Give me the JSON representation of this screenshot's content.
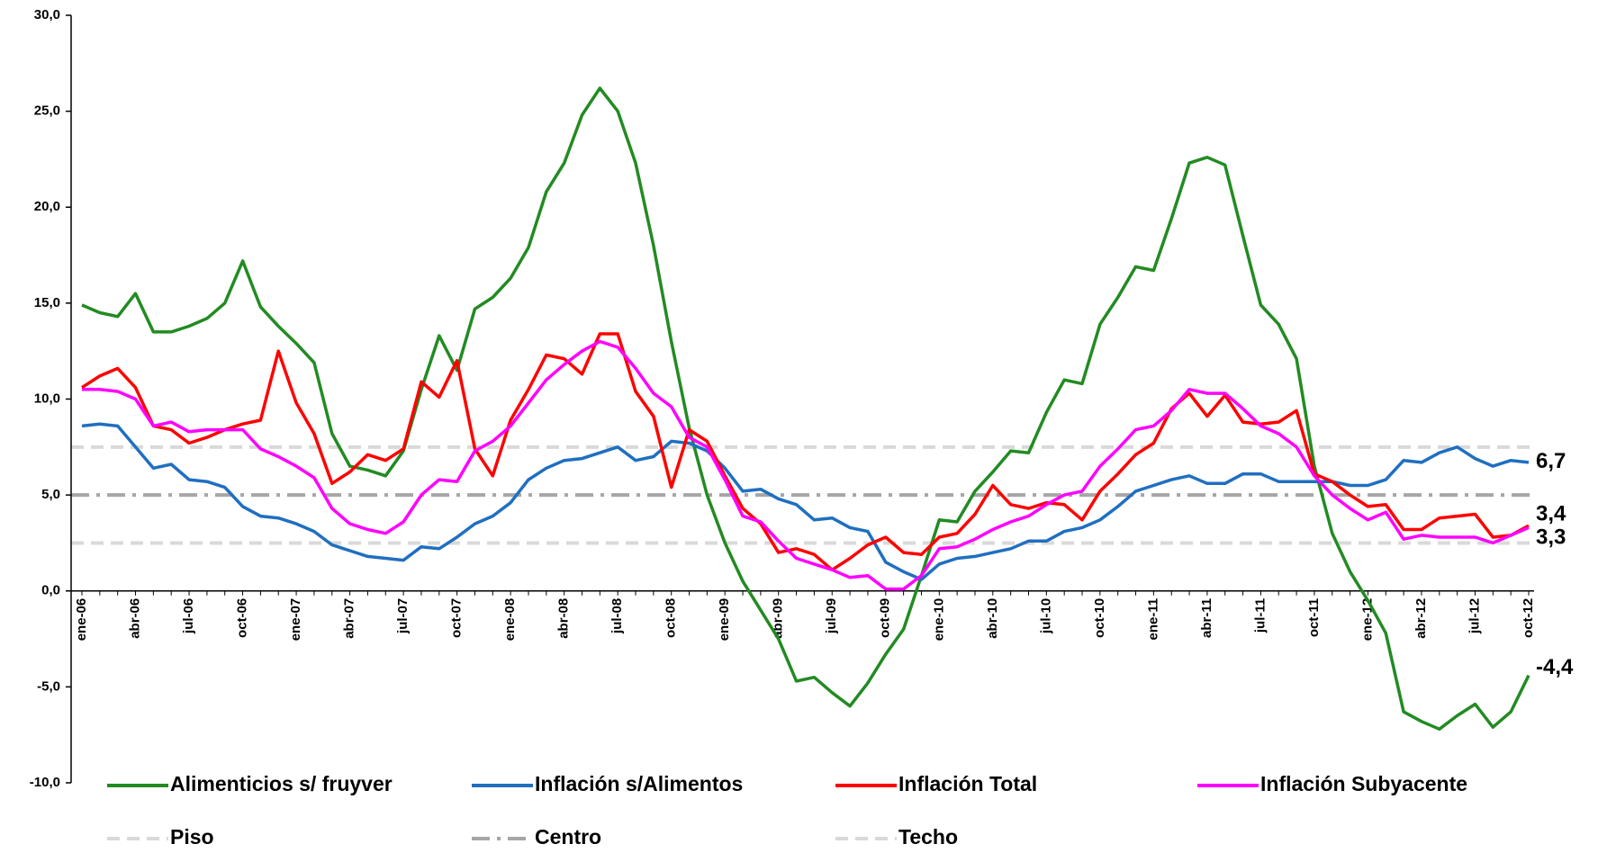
{
  "chart_data": {
    "type": "line",
    "categories": [
      "ene-06",
      null,
      null,
      "abr-06",
      null,
      null,
      "jul-06",
      null,
      null,
      "oct-06",
      null,
      null,
      "ene-07",
      null,
      null,
      "abr-07",
      null,
      null,
      "jul-07",
      null,
      null,
      "oct-07",
      null,
      null,
      "ene-08",
      null,
      null,
      "abr-08",
      null,
      null,
      "jul-08",
      null,
      null,
      "oct-08",
      null,
      null,
      "ene-09",
      null,
      null,
      "abr-09",
      null,
      null,
      "jul-09",
      null,
      null,
      "oct-09",
      null,
      null,
      "ene-10",
      null,
      null,
      "abr-10",
      null,
      null,
      "jul-10",
      null,
      null,
      "oct-10",
      null,
      null,
      "ene-11",
      null,
      null,
      "abr-11",
      null,
      null,
      "jul-11",
      null,
      null,
      "oct-11",
      null,
      null,
      "ene-12",
      null,
      null,
      "abr-12",
      null,
      null,
      "jul-12",
      null,
      null,
      "oct-12"
    ],
    "series": [
      {
        "name": "Alimenticios s/ fruyver",
        "color": "#228b22",
        "end_label": "-4,4",
        "values": [
          14.9,
          14.5,
          14.3,
          15.5,
          13.5,
          13.5,
          13.8,
          14.2,
          15.0,
          17.2,
          14.8,
          13.8,
          12.9,
          11.9,
          8.2,
          6.5,
          6.3,
          6.0,
          7.3,
          10.5,
          13.3,
          11.5,
          14.7,
          15.3,
          16.3,
          17.9,
          20.8,
          22.3,
          24.8,
          26.2,
          25.0,
          22.3,
          18.0,
          13.0,
          8.5,
          5.0,
          2.5,
          0.5,
          -1.0,
          -2.5,
          -4.7,
          -4.5,
          -5.3,
          -6.0,
          -4.8,
          -3.3,
          -2.0,
          0.8,
          3.7,
          3.6,
          5.2,
          6.2,
          7.3,
          7.2,
          9.3,
          11.0,
          10.8,
          13.9,
          15.3,
          16.9,
          16.7,
          19.4,
          22.3,
          22.6,
          22.2,
          18.5,
          14.9,
          13.9,
          12.1,
          6.5,
          3.0,
          1.0,
          -0.5,
          -2.2,
          -6.3,
          -6.8,
          -7.2,
          -6.5,
          -5.9,
          -7.1,
          -6.3,
          -4.4
        ]
      },
      {
        "name": "Inflación s/Alimentos",
        "color": "#1f6fc0",
        "end_label": "6,7",
        "values": [
          8.6,
          8.7,
          8.6,
          7.5,
          6.4,
          6.6,
          5.8,
          5.7,
          5.4,
          4.4,
          3.9,
          3.8,
          3.5,
          3.1,
          2.4,
          2.1,
          1.8,
          1.7,
          1.6,
          2.3,
          2.2,
          2.8,
          3.5,
          3.9,
          4.6,
          5.8,
          6.4,
          6.8,
          6.9,
          7.2,
          7.5,
          6.8,
          7.0,
          7.8,
          7.7,
          7.3,
          6.4,
          5.2,
          5.3,
          4.8,
          4.5,
          3.7,
          3.8,
          3.3,
          3.1,
          1.5,
          1.0,
          0.6,
          1.4,
          1.7,
          1.8,
          2.0,
          2.2,
          2.6,
          2.6,
          3.1,
          3.3,
          3.7,
          4.4,
          5.2,
          5.5,
          5.8,
          6.0,
          5.6,
          5.6,
          6.1,
          6.1,
          5.7,
          5.7,
          5.7,
          5.7,
          5.5,
          5.5,
          5.8,
          6.8,
          6.7,
          7.2,
          7.5,
          6.9,
          6.5,
          6.8,
          6.7
        ]
      },
      {
        "name": "Inflación Total",
        "color": "#ff0000",
        "end_label": "3,4",
        "values": [
          10.6,
          11.2,
          11.6,
          10.6,
          8.6,
          8.4,
          7.7,
          8.0,
          8.4,
          8.7,
          8.9,
          12.5,
          9.8,
          8.2,
          5.6,
          6.2,
          7.1,
          6.8,
          7.4,
          10.9,
          10.1,
          12.0,
          7.4,
          6.0,
          8.9,
          10.5,
          12.3,
          12.1,
          11.3,
          13.4,
          13.4,
          10.4,
          9.1,
          5.4,
          8.4,
          7.8,
          6.0,
          4.3,
          3.5,
          2.0,
          2.2,
          1.9,
          1.1,
          1.7,
          2.4,
          2.8,
          2.0,
          1.9,
          2.8,
          3.0,
          4.0,
          5.5,
          4.5,
          4.3,
          4.6,
          4.5,
          3.7,
          5.2,
          6.1,
          7.1,
          7.7,
          9.5,
          10.3,
          9.1,
          10.2,
          8.8,
          8.7,
          8.8,
          9.4,
          6.1,
          5.7,
          5.0,
          4.4,
          4.5,
          3.2,
          3.2,
          3.8,
          3.9,
          4.0,
          2.8,
          2.9,
          3.4
        ]
      },
      {
        "name": "Inflación Subyacente",
        "color": "#ff00ff",
        "end_label": "3,3",
        "values": [
          10.5,
          10.5,
          10.4,
          10.0,
          8.6,
          8.8,
          8.3,
          8.4,
          8.4,
          8.4,
          7.4,
          7.0,
          6.5,
          5.9,
          4.3,
          3.5,
          3.2,
          3.0,
          3.6,
          5.0,
          5.8,
          5.7,
          7.3,
          7.8,
          8.6,
          9.8,
          11.0,
          11.8,
          12.5,
          13.0,
          12.7,
          11.6,
          10.3,
          9.6,
          8.0,
          7.5,
          5.8,
          3.9,
          3.6,
          2.6,
          1.7,
          1.4,
          1.1,
          0.7,
          0.8,
          0.1,
          0.1,
          0.8,
          2.2,
          2.3,
          2.7,
          3.2,
          3.6,
          3.9,
          4.5,
          5.0,
          5.2,
          6.5,
          7.4,
          8.4,
          8.6,
          9.4,
          10.5,
          10.3,
          10.3,
          9.5,
          8.6,
          8.2,
          7.5,
          6.0,
          5.0,
          4.3,
          3.7,
          4.1,
          2.7,
          2.9,
          2.8,
          2.8,
          2.8,
          2.5,
          2.9,
          3.3
        ]
      }
    ],
    "reference_lines": [
      {
        "name": "Piso",
        "value": 2.5,
        "color": "#d9d9d9",
        "dash": "dash"
      },
      {
        "name": "Centro",
        "value": 5,
        "color": "#a6a6a6",
        "dash": "dashdot"
      },
      {
        "name": "Techo",
        "value": 7.5,
        "color": "#d9d9d9",
        "dash": "dash"
      }
    ],
    "ylim": [
      -10,
      30
    ],
    "yticks": [
      {
        "value": -10,
        "label": "-10,0"
      },
      {
        "value": -5,
        "label": "-5,0"
      },
      {
        "value": 0,
        "label": "0,0"
      },
      {
        "value": 5,
        "label": "5,0"
      },
      {
        "value": 10,
        "label": "10,0"
      },
      {
        "value": 15,
        "label": "15,0"
      },
      {
        "value": 20,
        "label": "20,0"
      },
      {
        "value": 25,
        "label": "25,0"
      },
      {
        "value": 30,
        "label": "30,0"
      }
    ],
    "grid": false
  }
}
